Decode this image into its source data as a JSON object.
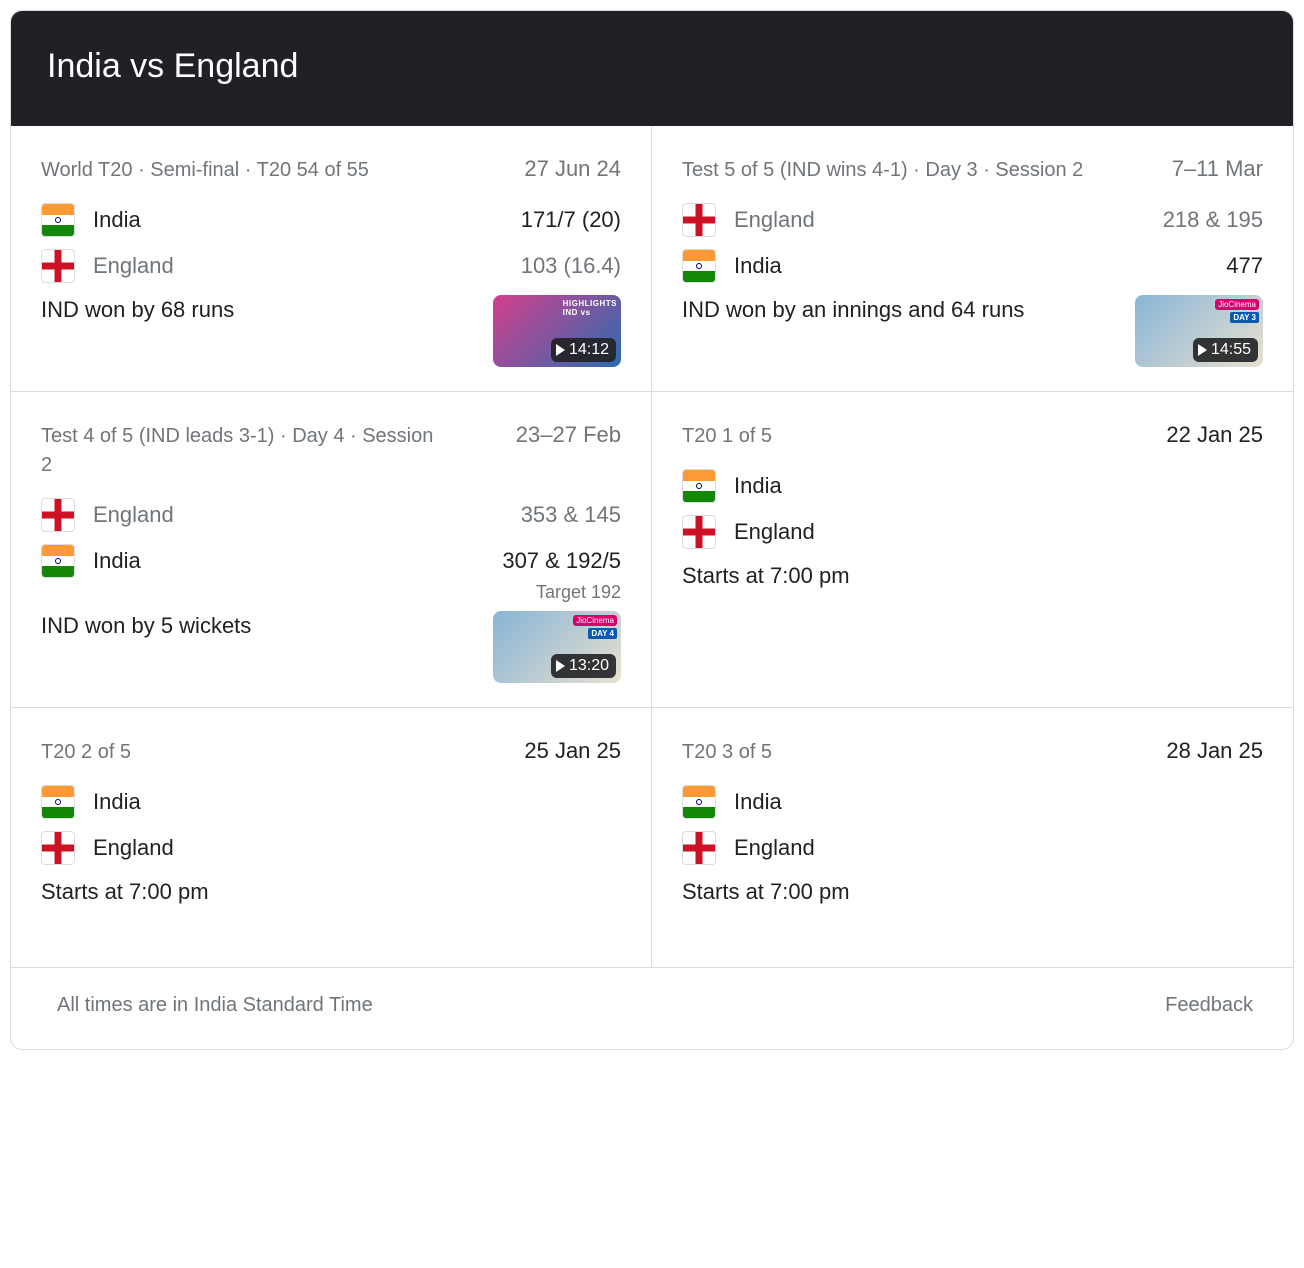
{
  "header": {
    "title": "India vs England"
  },
  "matches": [
    {
      "context": "World T20 · Semi-final · T20 54 of 55",
      "date": "27 Jun 24",
      "date_dark": false,
      "team1": {
        "flag": "india",
        "name": "India",
        "score": "171/7 (20)",
        "dim": false
      },
      "team2": {
        "flag": "eng",
        "name": "England",
        "score": "103 (16.4)",
        "dim": true
      },
      "result": "IND won by 68 runs",
      "video": {
        "duration": "14:12",
        "style": "t20",
        "badge": "highlights"
      }
    },
    {
      "context": "Test 5 of 5 (IND wins 4-1) · Day 3 · Session 2",
      "date": "7–11 Mar",
      "date_dark": false,
      "team1": {
        "flag": "eng",
        "name": "England",
        "score": "218 & 195",
        "dim": true
      },
      "team2": {
        "flag": "india",
        "name": "India",
        "score": "477",
        "dim": false
      },
      "result": "IND won by an innings and 64 runs",
      "video": {
        "duration": "14:55",
        "style": "test",
        "badge": "jio",
        "day": "DAY 3"
      }
    },
    {
      "context": "Test 4 of 5 (IND leads 3-1) · Day 4 · Session 2",
      "date": "23–27 Feb",
      "date_dark": false,
      "team1": {
        "flag": "eng",
        "name": "England",
        "score": "353 & 145",
        "dim": true
      },
      "team2": {
        "flag": "india",
        "name": "India",
        "score": "307 & 192/5",
        "dim": false,
        "target": "Target 192"
      },
      "result": "IND won by 5 wickets",
      "video": {
        "duration": "13:20",
        "style": "test",
        "badge": "jio",
        "day": "DAY 4"
      }
    },
    {
      "context": "T20 1 of 5",
      "date": "22 Jan 25",
      "date_dark": true,
      "team1": {
        "flag": "india",
        "name": "India"
      },
      "team2": {
        "flag": "eng",
        "name": "England"
      },
      "result": "Starts at 7:00 pm"
    },
    {
      "context": "T20 2 of 5",
      "date": "25 Jan 25",
      "date_dark": true,
      "team1": {
        "flag": "india",
        "name": "India"
      },
      "team2": {
        "flag": "eng",
        "name": "England"
      },
      "result": "Starts at 7:00 pm"
    },
    {
      "context": "T20 3 of 5",
      "date": "28 Jan 25",
      "date_dark": true,
      "team1": {
        "flag": "india",
        "name": "India"
      },
      "team2": {
        "flag": "eng",
        "name": "England"
      },
      "result": "Starts at 7:00 pm"
    }
  ],
  "footer": {
    "tz_note": "All times are in India Standard Time",
    "feedback": "Feedback"
  },
  "colors": {
    "text_primary": "#202124",
    "text_secondary": "#70757a",
    "border": "#dadce0",
    "header_bg": "#202124"
  }
}
